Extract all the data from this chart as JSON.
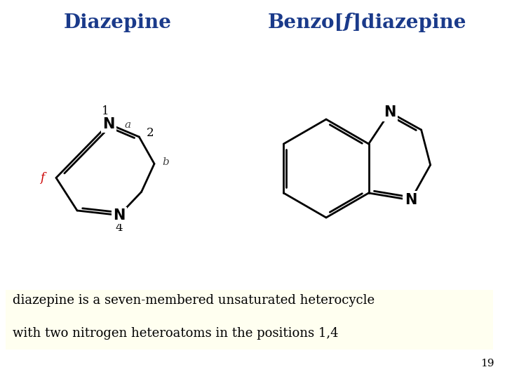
{
  "title_left": "Diazepine",
  "title_right_pre": "Benzo[",
  "title_right_f": "f",
  "title_right_post": "]diazepine",
  "title_color": "#1a3a8a",
  "title_fontsize": 20,
  "background_color": "#ffffff",
  "text_box_color": "#fffff5",
  "text_line1": "diazepine is a seven-membered unsaturated heterocycle",
  "text_line2": "with two nitrogen heteroatoms in the positions 1,4",
  "text_fontsize": 13,
  "page_number": "19",
  "atom_color": "#000000",
  "nitrogen_color": "#000000",
  "label_f_color": "#cc0000"
}
